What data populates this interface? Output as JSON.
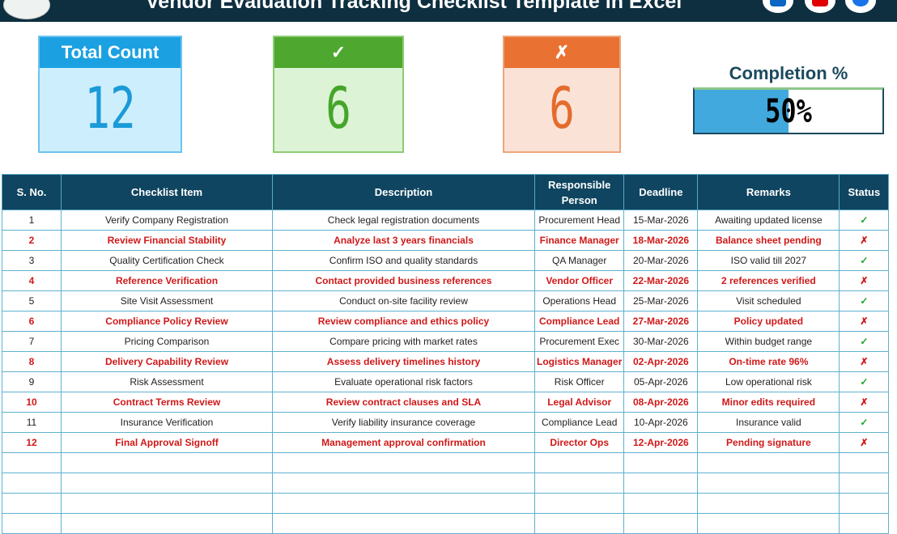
{
  "header": {
    "title": "Vendor Evaluation Tracking Checklist Template in Excel",
    "social": [
      {
        "icon": "linkedin-icon",
        "color": "#0a66c2"
      },
      {
        "icon": "youtube-icon",
        "color": "#e00000"
      },
      {
        "icon": "website-icon",
        "color": "#1a73e8"
      }
    ]
  },
  "cards": {
    "total": {
      "label": "Total Count",
      "value": "12",
      "color": "#1ba1e2"
    },
    "done": {
      "label": "✓",
      "value": "6",
      "color": "#4ea72e"
    },
    "pending": {
      "label": "✗",
      "value": "6",
      "color": "#e97132"
    }
  },
  "completion": {
    "label": "Completion %",
    "value": "50%",
    "fill": 0.5
  },
  "table": {
    "headers": [
      "S. No.",
      "Checklist Item",
      "Description",
      "Responsible Person",
      "Deadline",
      "Remarks",
      "Status"
    ],
    "rows": [
      [
        "1",
        "Verify Company Registration",
        "Check legal registration documents",
        "Procurement Head",
        "15-Mar-2026",
        "Awaiting updated license",
        "✓"
      ],
      [
        "2",
        "Review Financial Stability",
        "Analyze last 3 years financials",
        "Finance Manager",
        "18-Mar-2026",
        "Balance sheet pending",
        "✗"
      ],
      [
        "3",
        "Quality Certification Check",
        "Confirm ISO and quality standards",
        "QA Manager",
        "20-Mar-2026",
        "ISO valid till 2027",
        "✓"
      ],
      [
        "4",
        "Reference Verification",
        "Contact provided business references",
        "Vendor Officer",
        "22-Mar-2026",
        "2 references verified",
        "✗"
      ],
      [
        "5",
        "Site Visit Assessment",
        "Conduct on-site facility review",
        "Operations Head",
        "25-Mar-2026",
        "Visit scheduled",
        "✓"
      ],
      [
        "6",
        "Compliance Policy Review",
        "Review compliance and ethics policy",
        "Compliance Lead",
        "27-Mar-2026",
        "Policy updated",
        "✗"
      ],
      [
        "7",
        "Pricing Comparison",
        "Compare pricing with market rates",
        "Procurement Exec",
        "30-Mar-2026",
        "Within budget range",
        "✓"
      ],
      [
        "8",
        "Delivery Capability Review",
        "Assess delivery timelines history",
        "Logistics Manager",
        "02-Apr-2026",
        "On-time rate 96%",
        "✗"
      ],
      [
        "9",
        "Risk Assessment",
        "Evaluate operational risk factors",
        "Risk Officer",
        "05-Apr-2026",
        "Low operational risk",
        "✓"
      ],
      [
        "10",
        "Contract Terms Review",
        "Review contract clauses and SLA",
        "Legal Advisor",
        "08-Apr-2026",
        "Minor edits required",
        "✗"
      ],
      [
        "11",
        "Insurance Verification",
        "Verify liability insurance coverage",
        "Compliance Lead",
        "10-Apr-2026",
        "Insurance valid",
        "✓"
      ],
      [
        "12",
        "Final Approval Signoff",
        "Management approval confirmation",
        "Director Ops",
        "12-Apr-2026",
        "Pending signature",
        "✗"
      ]
    ]
  }
}
